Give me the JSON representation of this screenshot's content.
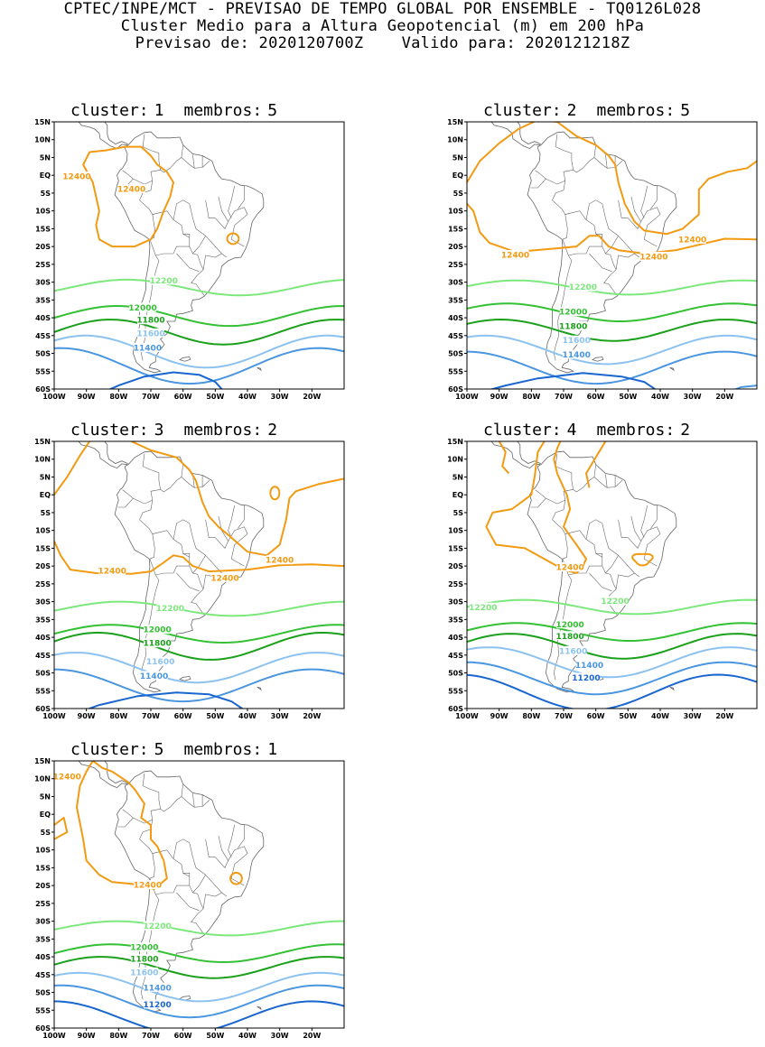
{
  "header": {
    "line1": "CPTEC/INPE/MCT - PREVISAO DE TEMPO GLOBAL POR ENSEMBLE - TQ0126L028",
    "line2": "Cluster Medio para a Altura Geopotencial (m) em 200 hPa",
    "line3": "Previsao de: 2020120700Z    Valido para: 2020121218Z"
  },
  "axes": {
    "lat_ticks": [
      "15N",
      "10N",
      "5N",
      "EQ",
      "5S",
      "10S",
      "15S",
      "20S",
      "25S",
      "30S",
      "35S",
      "40S",
      "45S",
      "50S",
      "55S",
      "60S"
    ],
    "lon_ticks": [
      "100W",
      "90W",
      "80W",
      "70W",
      "60W",
      "50W",
      "40W",
      "30W",
      "20W"
    ]
  },
  "colors": {
    "c12400": "#f29a11",
    "c12200": "#7ce87c",
    "c12000": "#33c033",
    "c11800": "#1aa01a",
    "c11600": "#8cc2f0",
    "c11400": "#4a96e0",
    "c11200": "#1a66d0",
    "land": "#666666",
    "frame": "#000000"
  },
  "panels": [
    {
      "cluster_label": "cluster:",
      "cluster_num": "1",
      "members_label": "membros:",
      "members_num": "5",
      "contour_labels": [
        {
          "text": "12400",
          "color": "c12400"
        },
        {
          "text": "12400",
          "color": "c12400"
        },
        {
          "text": "12200",
          "color": "c12200"
        },
        {
          "text": "12000",
          "color": "c12000"
        },
        {
          "text": "11800",
          "color": "c11800"
        },
        {
          "text": "11600",
          "color": "c11600"
        },
        {
          "text": "11400",
          "color": "c11400"
        }
      ]
    },
    {
      "cluster_label": "cluster:",
      "cluster_num": "2",
      "members_label": "membros:",
      "members_num": "5",
      "contour_labels": [
        {
          "text": "12400",
          "color": "c12400"
        },
        {
          "text": "12400",
          "color": "c12400"
        },
        {
          "text": "12400",
          "color": "c12400"
        },
        {
          "text": "12200",
          "color": "c12200"
        },
        {
          "text": "12000",
          "color": "c12000"
        },
        {
          "text": "11800",
          "color": "c11800"
        },
        {
          "text": "11600",
          "color": "c11600"
        },
        {
          "text": "11400",
          "color": "c11400"
        }
      ]
    },
    {
      "cluster_label": "cluster:",
      "cluster_num": "3",
      "members_label": "membros:",
      "members_num": "2",
      "contour_labels": [
        {
          "text": "12400",
          "color": "c12400"
        },
        {
          "text": "12400",
          "color": "c12400"
        },
        {
          "text": "12400",
          "color": "c12400"
        },
        {
          "text": "12200",
          "color": "c12200"
        },
        {
          "text": "12000",
          "color": "c12000"
        },
        {
          "text": "11800",
          "color": "c11800"
        },
        {
          "text": "11600",
          "color": "c11600"
        },
        {
          "text": "11400",
          "color": "c11400"
        }
      ]
    },
    {
      "cluster_label": "cluster:",
      "cluster_num": "4",
      "members_label": "membros:",
      "members_num": "2",
      "contour_labels": [
        {
          "text": "12400",
          "color": "c12400"
        },
        {
          "text": "12200",
          "color": "c12200"
        },
        {
          "text": "12200",
          "color": "c12200"
        },
        {
          "text": "12000",
          "color": "c12000"
        },
        {
          "text": "11800",
          "color": "c11800"
        },
        {
          "text": "11600",
          "color": "c11600"
        },
        {
          "text": "11400",
          "color": "c11400"
        },
        {
          "text": "11200",
          "color": "c11200"
        }
      ]
    },
    {
      "cluster_label": "cluster:",
      "cluster_num": "5",
      "members_label": "membros:",
      "members_num": "1",
      "contour_labels": [
        {
          "text": "12400",
          "color": "c12400"
        },
        {
          "text": "12400",
          "color": "c12400"
        },
        {
          "text": "12200",
          "color": "c12200"
        },
        {
          "text": "12000",
          "color": "c12000"
        },
        {
          "text": "11800",
          "color": "c11800"
        },
        {
          "text": "11600",
          "color": "c11600"
        },
        {
          "text": "11400",
          "color": "c11400"
        },
        {
          "text": "11200",
          "color": "c11200"
        }
      ]
    }
  ]
}
